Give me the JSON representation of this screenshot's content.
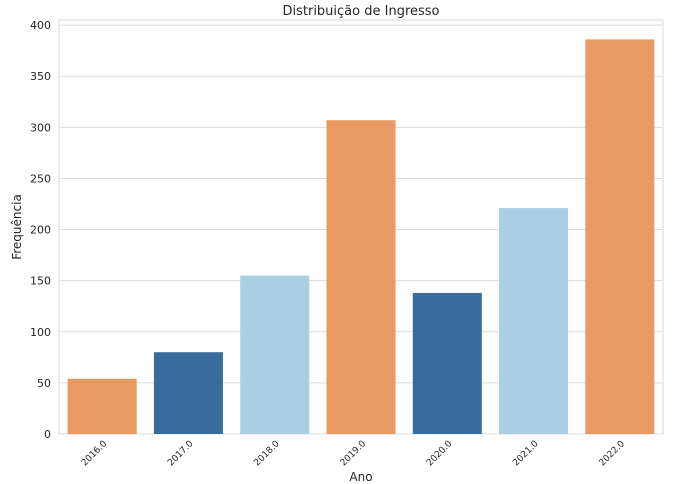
{
  "chart_data": {
    "type": "bar",
    "title": "Distribuição de Ingresso",
    "xlabel": "Ano",
    "ylabel": "Frequência",
    "categories": [
      "2016.0",
      "2017.0",
      "2018.0",
      "2019.0",
      "2020.0",
      "2021.0",
      "2022.0"
    ],
    "values": [
      54,
      80,
      155,
      307,
      138,
      221,
      386
    ],
    "bar_colors": [
      "#E99A62",
      "#386C9C",
      "#AACFE5",
      "#E99A62",
      "#386C9C",
      "#AACFE5",
      "#E99A62"
    ],
    "ylim": [
      0,
      405
    ],
    "yticks": [
      0,
      50,
      100,
      150,
      200,
      250,
      300,
      350,
      400
    ],
    "grid": true,
    "legend": "none"
  }
}
